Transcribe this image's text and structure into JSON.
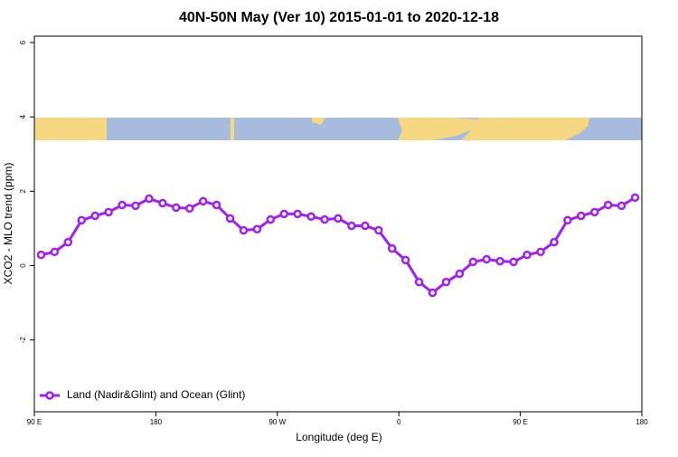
{
  "chart_data": {
    "type": "line",
    "title": "40N-50N May (Ver 10)   2015-01-01 to 2020-12-18",
    "x_label": "Longitude (deg E)",
    "y_label": "XCO2 - MLO trend (ppm)",
    "x": [
      95,
      105,
      115,
      125,
      135,
      145,
      155,
      165,
      175,
      185,
      195,
      205,
      215,
      225,
      235,
      245,
      255,
      265,
      275,
      285,
      295,
      305,
      315,
      325,
      335,
      345,
      355,
      365,
      375,
      385,
      395,
      405,
      415,
      425,
      435,
      445,
      455,
      465,
      475,
      485,
      495,
      505,
      515,
      525,
      535
    ],
    "series": [
      {
        "name": "Land (Nadir&Glint) and Ocean (Glint)",
        "color": "#a020f0",
        "values": [
          0.29,
          0.37,
          0.63,
          1.22,
          1.34,
          1.44,
          1.63,
          1.61,
          1.8,
          1.68,
          1.56,
          1.54,
          1.73,
          1.63,
          1.27,
          0.95,
          0.98,
          1.24,
          1.39,
          1.39,
          1.32,
          1.24,
          1.27,
          1.07,
          1.07,
          0.95,
          0.46,
          0.15,
          -0.44,
          -0.73,
          -0.44,
          -0.22,
          0.1,
          0.17,
          0.12,
          0.1,
          0.29,
          0.37,
          0.63,
          1.22,
          1.34,
          1.44,
          1.63,
          1.61,
          1.83
        ]
      }
    ],
    "xlim": [
      90,
      540
    ],
    "xticks": [
      {
        "value": 90,
        "label": "90 E"
      },
      180,
      {
        "value": 270,
        "label": "90 W"
      },
      {
        "value": 360,
        "label": "0"
      },
      {
        "value": 450,
        "label": "90 E"
      },
      {
        "value": 540,
        "label": "180"
      }
    ],
    "ylim": [
      -3.93,
      6.17
    ],
    "yticks": [
      -2,
      0,
      2,
      4,
      6
    ],
    "legend": "bottom-left"
  }
}
